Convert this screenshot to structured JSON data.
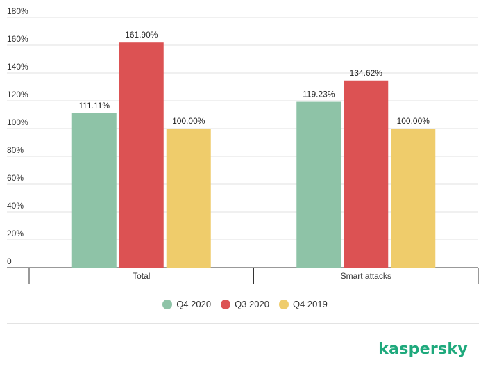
{
  "chart_data": {
    "type": "bar",
    "title": "",
    "xlabel": "",
    "ylabel": "",
    "categories": [
      "Total",
      "Smart attacks"
    ],
    "series": [
      {
        "name": "Q4 2020",
        "color": "#8ec3a7",
        "values": [
          111.11,
          119.23
        ],
        "labels": [
          "111.11%",
          "119.23%"
        ]
      },
      {
        "name": "Q3 2020",
        "color": "#dc5253",
        "values": [
          161.9,
          134.62
        ],
        "labels": [
          "161.90%",
          "134.62%"
        ]
      },
      {
        "name": "Q4 2019",
        "color": "#efcc6b",
        "values": [
          100.0,
          100.0
        ],
        "labels": [
          "100.00%",
          "100.00%"
        ]
      }
    ],
    "ylim": [
      0,
      180
    ],
    "yticks": [
      0,
      20,
      40,
      60,
      80,
      100,
      120,
      140,
      160,
      180
    ],
    "ytick_labels": [
      "0",
      "20%",
      "40%",
      "60%",
      "80%",
      "100%",
      "120%",
      "140%",
      "160%",
      "180%"
    ],
    "grid": true,
    "legend_position": "bottom-center"
  },
  "brand": {
    "name": "kaspersky",
    "color": "#1ea97c"
  }
}
